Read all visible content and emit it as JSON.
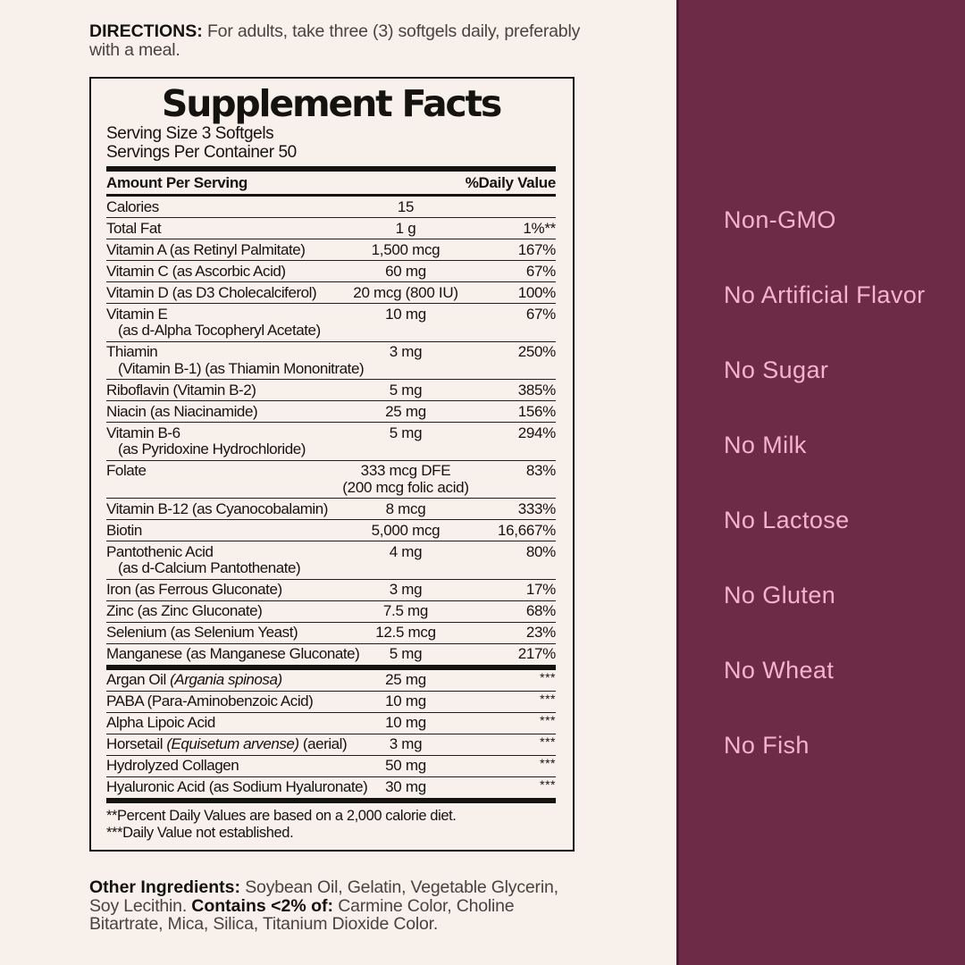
{
  "colors": {
    "background": "#f8f0ea",
    "panel": "#6e2b47",
    "panel_edge": "#4a1c31",
    "claim_text": "#f3b4cf",
    "ink": "#15130f",
    "body_text": "#47443f"
  },
  "directions": {
    "label": "DIRECTIONS:",
    "text": " For adults, take three (3) softgels daily, preferably with a meal."
  },
  "supplement_facts": {
    "title": "Supplement Facts",
    "serving_size": "Serving Size 3 Softgels",
    "servings_per_container": "Servings Per Container 50",
    "header": {
      "amount": "Amount Per Serving",
      "daily_value": "%Daily Value"
    },
    "rows": [
      {
        "name": "Calories",
        "amount": "15",
        "dv": ""
      },
      {
        "name": "Total Fat",
        "amount": "1 g",
        "dv": "1%**"
      },
      {
        "name": "Vitamin A (as Retinyl Palmitate)",
        "amount": "1,500 mcg",
        "dv": "167%"
      },
      {
        "name": "Vitamin C (as Ascorbic Acid)",
        "amount": "60 mg",
        "dv": "67%"
      },
      {
        "name": "Vitamin D (as D3 Cholecalciferol)",
        "amount": "20 mcg (800 IU)",
        "dv": "100%"
      },
      {
        "name": "Vitamin E",
        "sub": "(as d-Alpha Tocopheryl Acetate)",
        "amount": "10 mg",
        "dv": "67%"
      },
      {
        "name": "Thiamin",
        "sub": "(Vitamin B-1) (as Thiamin Mononitrate)",
        "amount": "3 mg",
        "dv": "250%"
      },
      {
        "name": "Riboflavin (Vitamin B-2)",
        "amount": "5 mg",
        "dv": "385%"
      },
      {
        "name": "Niacin (as Niacinamide)",
        "amount": "25 mg",
        "dv": "156%"
      },
      {
        "name": "Vitamin B-6",
        "sub": "(as Pyridoxine Hydrochloride)",
        "amount": "5 mg",
        "dv": "294%"
      },
      {
        "name": "Folate",
        "amount": "333 mcg DFE",
        "amount_sub": "(200 mcg folic acid)",
        "dv": "83%"
      },
      {
        "name": "Vitamin B-12 (as Cyanocobalamin)",
        "amount": "8 mcg",
        "dv": "333%"
      },
      {
        "name": "Biotin",
        "amount": "5,000 mcg",
        "dv": "16,667%"
      },
      {
        "name": "Pantothenic Acid",
        "sub": "(as d-Calcium Pantothenate)",
        "amount": "4 mg",
        "dv": "80%"
      },
      {
        "name": "Iron (as Ferrous Gluconate)",
        "amount": "3 mg",
        "dv": "17%"
      },
      {
        "name": "Zinc (as Zinc Gluconate)",
        "amount": "7.5 mg",
        "dv": "68%"
      },
      {
        "name": "Selenium (as Selenium Yeast)",
        "amount": "12.5 mcg",
        "dv": "23%"
      },
      {
        "name": "Manganese (as Manganese Gluconate)",
        "amount": "5 mg",
        "dv": "217%",
        "thick_after": true
      },
      {
        "name_parts": [
          {
            "text": "Argan Oil "
          },
          {
            "text": "(Argania spinosa)",
            "italic": true
          }
        ],
        "amount": "25 mg",
        "dv": "***"
      },
      {
        "name": "PABA (Para-Aminobenzoic Acid)",
        "amount": "10 mg",
        "dv": "***"
      },
      {
        "name": "Alpha Lipoic Acid",
        "amount": "10 mg",
        "dv": "***"
      },
      {
        "name_parts": [
          {
            "text": "Horsetail "
          },
          {
            "text": "(Equisetum arvense)",
            "italic": true
          },
          {
            "text": " (aerial)"
          }
        ],
        "amount": "3 mg",
        "dv": "***"
      },
      {
        "name": "Hydrolyzed Collagen",
        "amount": "50 mg",
        "dv": "***"
      },
      {
        "name": "Hyaluronic Acid (as Sodium Hyaluronate)",
        "amount": "30 mg",
        "dv": "***",
        "thick_after": true
      }
    ],
    "footnotes": [
      "**Percent Daily Values are based on a 2,000 calorie diet.",
      "***Daily Value not established."
    ]
  },
  "other_ingredients": {
    "label": "Other Ingredients:",
    "text1": " Soybean Oil, Gelatin, Vegetable Glycerin, Soy Lecithin. ",
    "contains_label": "Contains <2% of:",
    "text2": " Carmine Color, Choline Bitartrate, Mica, Silica, Titanium Dioxide Color."
  },
  "claims": [
    "Non-GMO",
    "No Artificial Flavor",
    "No Sugar",
    "No Milk",
    "No Lactose",
    "No Gluten",
    "No Wheat",
    "No Fish"
  ]
}
